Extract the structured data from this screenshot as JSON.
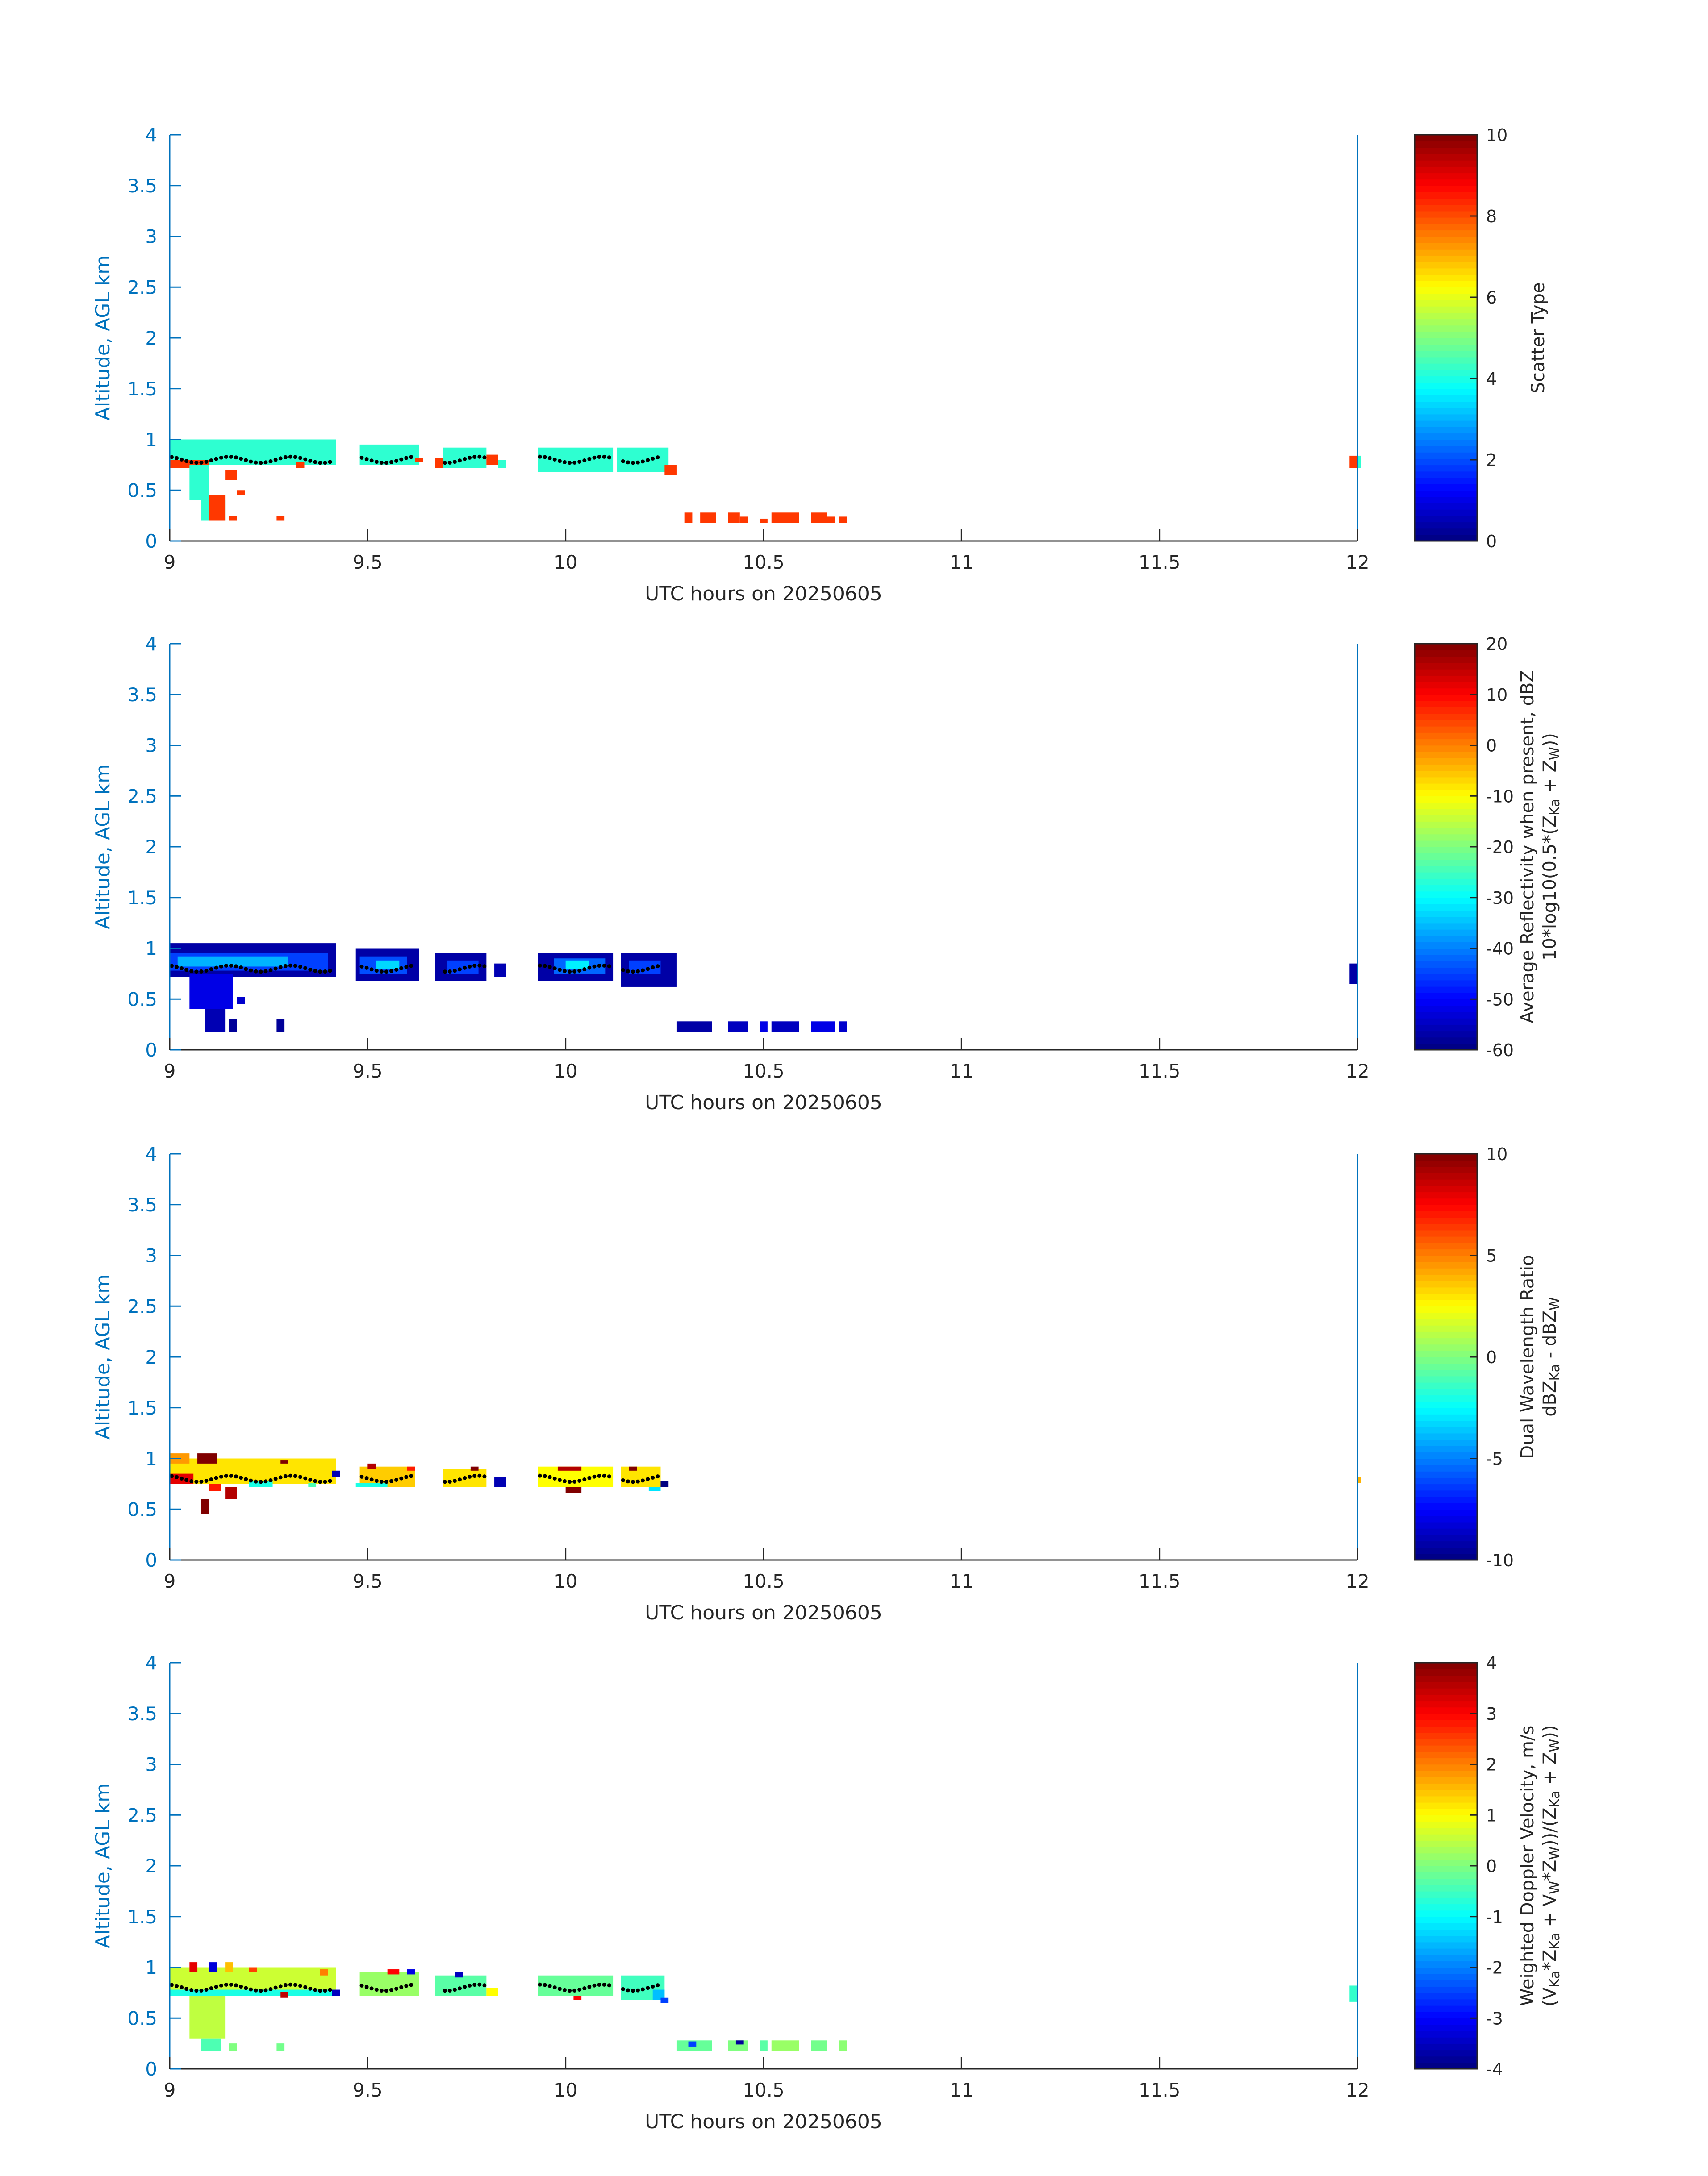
{
  "figure": {
    "date_label": "UTC hours on 20250605",
    "axis_color": "#0072bd"
  },
  "chart_data": [
    {
      "type": "heatmap",
      "panel_id": "scatter-type",
      "xlabel": "UTC hours on 20250605",
      "ylabel": "Altitude, AGL km",
      "x_ticks": [
        "9",
        "9.5",
        "10",
        "10.5",
        "11",
        "11.5",
        "12"
      ],
      "y_ticks": [
        "0",
        "0.5",
        "1",
        "1.5",
        "2",
        "2.5",
        "3",
        "3.5",
        "4"
      ],
      "xlim": [
        9,
        12
      ],
      "ylim": [
        0,
        4
      ],
      "colorbar": {
        "label_lines": [
          "Scatter Type"
        ],
        "ticks": [
          "0",
          "2",
          "4",
          "6",
          "8",
          "10"
        ],
        "range": [
          0,
          10
        ]
      },
      "cells": [
        [
          9.0,
          9.42,
          0.75,
          1.0,
          4.2
        ],
        [
          9.0,
          9.1,
          0.72,
          0.8,
          8.2
        ],
        [
          9.05,
          9.1,
          0.4,
          0.75,
          4.2
        ],
        [
          9.08,
          9.14,
          0.2,
          0.4,
          4.2
        ],
        [
          9.1,
          9.14,
          0.2,
          0.45,
          8.2
        ],
        [
          9.14,
          9.17,
          0.6,
          0.7,
          8.2
        ],
        [
          9.15,
          9.17,
          0.2,
          0.25,
          8.2
        ],
        [
          9.17,
          9.19,
          0.45,
          0.5,
          8.2
        ],
        [
          9.27,
          9.29,
          0.2,
          0.25,
          8.2
        ],
        [
          9.32,
          9.34,
          0.72,
          0.78,
          8.2
        ],
        [
          9.48,
          9.63,
          0.75,
          0.95,
          4.2
        ],
        [
          9.62,
          9.64,
          0.78,
          0.82,
          8.2
        ],
        [
          9.67,
          9.7,
          0.72,
          0.82,
          8.2
        ],
        [
          9.69,
          9.8,
          0.72,
          0.92,
          4.2
        ],
        [
          9.8,
          9.83,
          0.75,
          0.85,
          8.2
        ],
        [
          9.83,
          9.85,
          0.72,
          0.8,
          4.2
        ],
        [
          9.93,
          10.12,
          0.68,
          0.92,
          4.2
        ],
        [
          10.13,
          10.26,
          0.68,
          0.92,
          4.2
        ],
        [
          10.25,
          10.28,
          0.65,
          0.75,
          8.2
        ],
        [
          10.3,
          10.32,
          0.18,
          0.28,
          8.2
        ],
        [
          10.34,
          10.38,
          0.18,
          0.28,
          8.2
        ],
        [
          10.41,
          10.44,
          0.18,
          0.28,
          8.2
        ],
        [
          10.44,
          10.46,
          0.18,
          0.24,
          8.2
        ],
        [
          10.49,
          10.51,
          0.18,
          0.22,
          8.2
        ],
        [
          10.52,
          10.59,
          0.18,
          0.28,
          8.2
        ],
        [
          10.62,
          10.66,
          0.18,
          0.28,
          8.2
        ],
        [
          10.66,
          10.68,
          0.18,
          0.24,
          8.2
        ],
        [
          10.69,
          10.71,
          0.18,
          0.24,
          8.2
        ],
        [
          11.98,
          12.0,
          0.72,
          0.84,
          8.2
        ],
        [
          12.0,
          12.01,
          0.72,
          0.84,
          4.2
        ]
      ]
    },
    {
      "type": "heatmap",
      "panel_id": "reflectivity",
      "xlabel": "UTC hours on 20250605",
      "ylabel": "Altitude, AGL km",
      "x_ticks": [
        "9",
        "9.5",
        "10",
        "10.5",
        "11",
        "11.5",
        "12"
      ],
      "y_ticks": [
        "0",
        "0.5",
        "1",
        "1.5",
        "2",
        "2.5",
        "3",
        "3.5",
        "4"
      ],
      "xlim": [
        9,
        12
      ],
      "ylim": [
        0,
        4
      ],
      "colorbar": {
        "label_lines": [
          "Average Reflectivity when present, dBZ",
          "10*log10(0.5*(Z",
          "Ka",
          " + Z",
          "W",
          "))"
        ],
        "ticks": [
          "-60",
          "-50",
          "-40",
          "-30",
          "-20",
          "-10",
          "0",
          "10",
          "20"
        ],
        "range": [
          -60,
          20
        ]
      },
      "cells": [
        [
          9.0,
          9.42,
          0.72,
          1.05,
          -57
        ],
        [
          9.0,
          9.4,
          0.78,
          0.95,
          -45
        ],
        [
          9.02,
          9.3,
          0.82,
          0.92,
          -36
        ],
        [
          9.05,
          9.16,
          0.4,
          0.75,
          -52
        ],
        [
          9.09,
          9.14,
          0.18,
          0.4,
          -56
        ],
        [
          9.15,
          9.17,
          0.18,
          0.3,
          -58
        ],
        [
          9.17,
          9.19,
          0.45,
          0.52,
          -54
        ],
        [
          9.27,
          9.29,
          0.18,
          0.3,
          -58
        ],
        [
          9.47,
          9.63,
          0.68,
          1.0,
          -57
        ],
        [
          9.48,
          9.6,
          0.75,
          0.92,
          -44
        ],
        [
          9.52,
          9.58,
          0.8,
          0.88,
          -33
        ],
        [
          9.67,
          9.8,
          0.68,
          0.95,
          -57
        ],
        [
          9.7,
          9.78,
          0.75,
          0.88,
          -45
        ],
        [
          9.82,
          9.85,
          0.72,
          0.85,
          -56
        ],
        [
          9.93,
          10.12,
          0.68,
          0.95,
          -57
        ],
        [
          9.97,
          10.1,
          0.75,
          0.9,
          -42
        ],
        [
          10.0,
          10.06,
          0.8,
          0.88,
          -31
        ],
        [
          10.14,
          10.28,
          0.62,
          0.95,
          -57
        ],
        [
          10.16,
          10.24,
          0.75,
          0.88,
          -45
        ],
        [
          10.28,
          10.37,
          0.18,
          0.28,
          -57
        ],
        [
          10.41,
          10.46,
          0.18,
          0.28,
          -55
        ],
        [
          10.49,
          10.51,
          0.18,
          0.28,
          -52
        ],
        [
          10.52,
          10.59,
          0.18,
          0.28,
          -55
        ],
        [
          10.62,
          10.68,
          0.18,
          0.28,
          -52
        ],
        [
          10.69,
          10.71,
          0.18,
          0.28,
          -54
        ],
        [
          11.98,
          12.0,
          0.65,
          0.85,
          -57
        ]
      ]
    },
    {
      "type": "heatmap",
      "panel_id": "dual-wavelength-ratio",
      "xlabel": "UTC hours on 20250605",
      "ylabel": "Altitude, AGL km",
      "x_ticks": [
        "9",
        "9.5",
        "10",
        "10.5",
        "11",
        "11.5",
        "12"
      ],
      "y_ticks": [
        "0",
        "0.5",
        "1",
        "1.5",
        "2",
        "2.5",
        "3",
        "3.5",
        "4"
      ],
      "xlim": [
        9,
        12
      ],
      "ylim": [
        0,
        4
      ],
      "colorbar": {
        "label_lines": [
          "Dual Wavelength Ratio",
          "dBZ",
          "Ka",
          " - dBZ",
          "W"
        ],
        "ticks": [
          "-10",
          "-5",
          "0",
          "5",
          "10"
        ],
        "range": [
          -10,
          10
        ]
      },
      "cells": [
        [
          9.0,
          9.42,
          0.75,
          1.0,
          3.0
        ],
        [
          9.0,
          9.05,
          0.95,
          1.05,
          4.5
        ],
        [
          9.07,
          9.12,
          0.95,
          1.05,
          10
        ],
        [
          9.0,
          9.06,
          0.75,
          0.85,
          8
        ],
        [
          9.08,
          9.1,
          0.45,
          0.6,
          10
        ],
        [
          9.14,
          9.17,
          0.6,
          0.72,
          9
        ],
        [
          9.1,
          9.13,
          0.68,
          0.75,
          7
        ],
        [
          9.2,
          9.26,
          0.72,
          0.78,
          -2
        ],
        [
          9.28,
          9.3,
          0.95,
          0.98,
          10
        ],
        [
          9.35,
          9.37,
          0.72,
          0.76,
          -1
        ],
        [
          9.41,
          9.43,
          0.82,
          0.88,
          -9
        ],
        [
          9.48,
          9.62,
          0.72,
          0.92,
          3.5
        ],
        [
          9.5,
          9.52,
          0.9,
          0.95,
          9
        ],
        [
          9.6,
          9.62,
          0.88,
          0.92,
          7
        ],
        [
          9.47,
          9.55,
          0.72,
          0.76,
          -2
        ],
        [
          9.69,
          9.8,
          0.72,
          0.9,
          3.0
        ],
        [
          9.76,
          9.78,
          0.88,
          0.92,
          10
        ],
        [
          9.82,
          9.85,
          0.72,
          0.82,
          -9
        ],
        [
          9.93,
          10.12,
          0.72,
          0.92,
          2.5
        ],
        [
          9.98,
          10.04,
          0.88,
          0.92,
          9
        ],
        [
          10.0,
          10.04,
          0.66,
          0.72,
          10
        ],
        [
          10.14,
          10.24,
          0.72,
          0.92,
          3.0
        ],
        [
          10.16,
          10.18,
          0.88,
          0.92,
          10
        ],
        [
          10.21,
          10.24,
          0.68,
          0.72,
          -3
        ],
        [
          10.24,
          10.26,
          0.72,
          0.78,
          -10
        ],
        [
          12.0,
          12.01,
          0.76,
          0.82,
          4
        ]
      ]
    },
    {
      "type": "heatmap",
      "panel_id": "doppler-velocity",
      "xlabel": "UTC hours on 20250605",
      "ylabel": "Altitude, AGL km",
      "x_ticks": [
        "9",
        "9.5",
        "10",
        "10.5",
        "11",
        "11.5",
        "12"
      ],
      "y_ticks": [
        "0",
        "0.5",
        "1",
        "1.5",
        "2",
        "2.5",
        "3",
        "3.5",
        "4"
      ],
      "xlim": [
        9,
        12
      ],
      "ylim": [
        0,
        4
      ],
      "colorbar": {
        "label_lines": [
          "Weighted Doppler Velocity, m/s",
          "(V",
          "Ka",
          "*Z",
          "Ka",
          " + V",
          "W",
          "*Z",
          "W",
          "))/(Z",
          "Ka",
          " + Z",
          "W",
          "))"
        ],
        "ticks": [
          "-4",
          "-3",
          "-2",
          "-1",
          "0",
          "1",
          "2",
          "3",
          "4"
        ],
        "range": [
          -4,
          4
        ]
      },
      "cells": [
        [
          9.0,
          9.42,
          0.72,
          1.0,
          0.6
        ],
        [
          9.0,
          9.42,
          0.72,
          0.78,
          -0.8
        ],
        [
          9.05,
          9.14,
          0.3,
          0.72,
          0.5
        ],
        [
          9.08,
          9.13,
          0.18,
          0.3,
          -0.4
        ],
        [
          9.15,
          9.17,
          0.18,
          0.25,
          0.0
        ],
        [
          9.27,
          9.29,
          0.18,
          0.25,
          -0.1
        ],
        [
          9.05,
          9.07,
          0.95,
          1.05,
          3.2
        ],
        [
          9.1,
          9.12,
          0.95,
          1.05,
          -3.3
        ],
        [
          9.14,
          9.16,
          0.95,
          1.05,
          1.5
        ],
        [
          9.2,
          9.22,
          0.95,
          1.0,
          2.5
        ],
        [
          9.28,
          9.3,
          0.7,
          0.76,
          3.5
        ],
        [
          9.38,
          9.4,
          0.92,
          0.98,
          2.0
        ],
        [
          9.41,
          9.43,
          0.72,
          0.78,
          -3.5
        ],
        [
          9.48,
          9.63,
          0.72,
          0.95,
          0.2
        ],
        [
          9.55,
          9.58,
          0.93,
          0.98,
          3.0
        ],
        [
          9.6,
          9.62,
          0.93,
          0.98,
          -3.2
        ],
        [
          9.67,
          9.8,
          0.72,
          0.92,
          -0.3
        ],
        [
          9.72,
          9.74,
          0.9,
          0.95,
          -3.5
        ],
        [
          9.8,
          9.83,
          0.72,
          0.8,
          1.0
        ],
        [
          9.93,
          10.12,
          0.72,
          0.92,
          -0.2
        ],
        [
          10.02,
          10.04,
          0.68,
          0.72,
          3.0
        ],
        [
          10.14,
          10.25,
          0.68,
          0.92,
          -0.5
        ],
        [
          10.22,
          10.25,
          0.68,
          0.78,
          -1.5
        ],
        [
          10.24,
          10.26,
          0.65,
          0.7,
          -2.5
        ],
        [
          10.28,
          10.37,
          0.18,
          0.28,
          -0.2
        ],
        [
          10.31,
          10.33,
          0.22,
          0.27,
          -2.5
        ],
        [
          10.41,
          10.46,
          0.18,
          0.28,
          0.0
        ],
        [
          10.43,
          10.45,
          0.24,
          0.28,
          -3.8
        ],
        [
          10.49,
          10.51,
          0.18,
          0.28,
          -0.3
        ],
        [
          10.52,
          10.59,
          0.18,
          0.28,
          0.2
        ],
        [
          10.62,
          10.66,
          0.18,
          0.28,
          -0.1
        ],
        [
          10.69,
          10.71,
          0.18,
          0.28,
          0.1
        ],
        [
          11.98,
          12.0,
          0.66,
          0.82,
          -0.6
        ]
      ]
    }
  ]
}
